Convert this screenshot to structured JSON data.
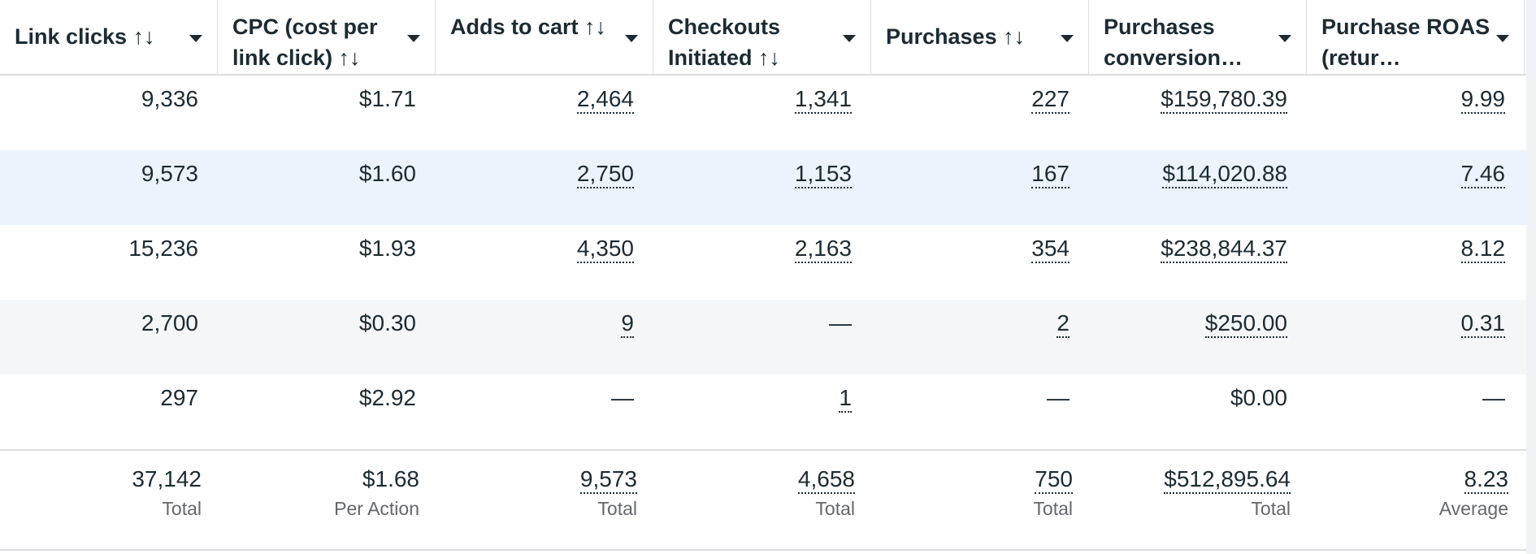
{
  "headers": [
    {
      "label": "Link clicks ↑↓",
      "single": true
    },
    {
      "label": "CPC (cost per link click) ↑↓",
      "single": false
    },
    {
      "label": "Adds to cart ↑↓",
      "single": false
    },
    {
      "label": "Checkouts Initiated ↑↓",
      "single": false
    },
    {
      "label": "Purchases ↑↓",
      "single": true
    },
    {
      "label": "Purchases conversion…",
      "single": false
    },
    {
      "label": "Purchase ROAS (retur…",
      "single": false
    }
  ],
  "rows": [
    {
      "highlight": "none",
      "cells": [
        "9,336",
        "$1.71",
        "2,464",
        "1,341",
        "227",
        "$159,780.39",
        "9.99"
      ]
    },
    {
      "highlight": "blue",
      "cells": [
        "9,573",
        "$1.60",
        "2,750",
        "1,153",
        "167",
        "$114,020.88",
        "7.46"
      ]
    },
    {
      "highlight": "none",
      "cells": [
        "15,236",
        "$1.93",
        "4,350",
        "2,163",
        "354",
        "$238,844.37",
        "8.12"
      ]
    },
    {
      "highlight": "grey",
      "cells": [
        "2,700",
        "$0.30",
        "9",
        "—",
        "2",
        "$250.00",
        "0.31"
      ]
    },
    {
      "highlight": "none",
      "cells": [
        "297",
        "$2.92",
        "—",
        "1",
        "—",
        "$0.00",
        "—"
      ]
    }
  ],
  "totals": [
    {
      "value": "37,142",
      "label": "Total"
    },
    {
      "value": "$1.68",
      "label": "Per Action"
    },
    {
      "value": "9,573",
      "label": "Total"
    },
    {
      "value": "4,658",
      "label": "Total"
    },
    {
      "value": "750",
      "label": "Total"
    },
    {
      "value": "$512,895.64",
      "label": "Total"
    },
    {
      "value": "8.23",
      "label": "Average"
    }
  ],
  "underlined_columns": [
    2,
    3,
    4,
    5,
    6
  ],
  "colors": {
    "highlight_blue": "#ecf3fd",
    "highlight_grey": "#f5f6f7",
    "border": "#dadde1",
    "text": "#1c2b33",
    "subtext": "#65676b"
  }
}
